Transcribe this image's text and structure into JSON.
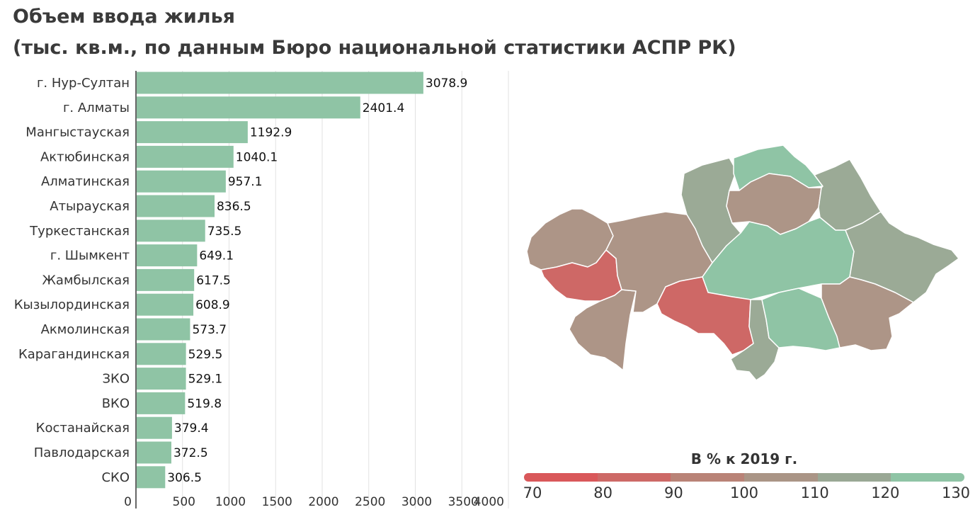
{
  "title": "Объем ввода жилья",
  "subtitle": "(тыс. кв.м., по данным Бюро национальной статистики АСПР РК)",
  "chart_data": {
    "type": "bar",
    "orientation": "horizontal",
    "categories": [
      "г. Нур-Султан",
      "г. Алматы",
      "Мангыстауская",
      "Актюбинская",
      "Алматинская",
      "Атырауская",
      "Туркестанская",
      "г. Шымкент",
      "Жамбылская",
      "Кызылординская",
      "Акмолинская",
      "Карагандинская",
      "ЗКО",
      "ВКО",
      "Костанайская",
      "Павлодарская",
      "СКО"
    ],
    "values": [
      3078.9,
      2401.4,
      1192.9,
      1040.1,
      957.1,
      836.5,
      735.5,
      649.1,
      617.5,
      608.9,
      573.7,
      529.5,
      529.1,
      519.8,
      379.4,
      372.5,
      306.5
    ],
    "value_labels": [
      "3078.9",
      "2401.4",
      "1192.9",
      "1040.1",
      "957.1",
      "836.5",
      "735.5",
      "649.1",
      "617.5",
      "608.9",
      "573.7",
      "529.5",
      "529.1",
      "519.8",
      "379.4",
      "372.5",
      "306.5"
    ],
    "xlim": [
      0,
      4000
    ],
    "x_ticks": [
      "0",
      "500",
      "1000",
      "1500",
      "2000",
      "2500",
      "3000",
      "3500",
      "4000"
    ],
    "bar_color": "#8fc4a5",
    "grid": true
  },
  "map": {
    "legend_title": "В % к 2019 г.",
    "legend_ticks": [
      "70",
      "80",
      "90",
      "100",
      "110",
      "120",
      "130"
    ],
    "legend_colors": [
      "#d9585a",
      "#cd6966",
      "#b98377",
      "#aa9586",
      "#9aa895",
      "#8fc4a5"
    ],
    "colors": {
      "green": "#8fc4a5",
      "gray_green": "#9baa96",
      "brown": "#ad9587",
      "red": "#ce6866"
    }
  }
}
